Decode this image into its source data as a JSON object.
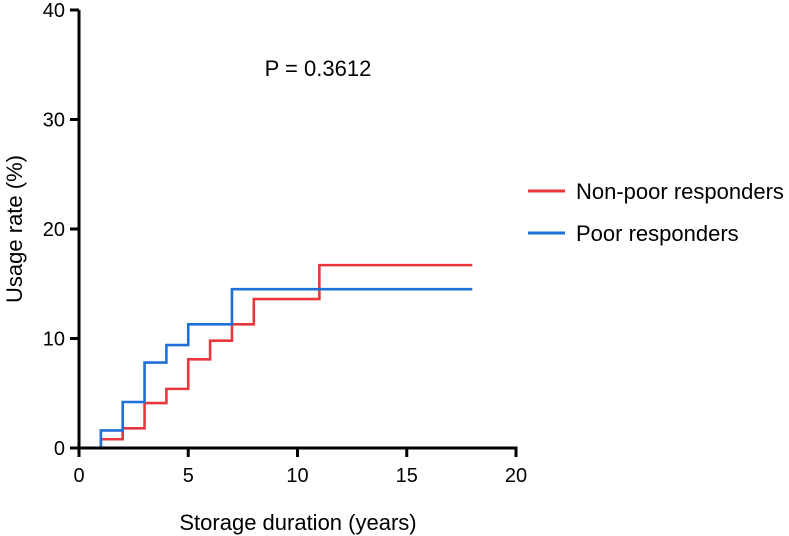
{
  "chart_data": {
    "type": "line",
    "step": true,
    "title": "",
    "xlabel": "Storage duration (years)",
    "ylabel": "Usage rate (%)",
    "xlim": [
      0,
      20
    ],
    "ylim": [
      0,
      40
    ],
    "x_ticks": [
      0,
      5,
      10,
      15,
      20
    ],
    "y_ticks": [
      0,
      10,
      20,
      30,
      40
    ],
    "grid": false,
    "legend_position": "right",
    "annotation": "P = 0.3612",
    "series": [
      {
        "name": "Non-poor responders",
        "color": "#e8383d",
        "x": [
          0,
          1,
          2,
          3,
          4,
          5,
          6,
          7,
          8,
          11,
          18
        ],
        "y": [
          0,
          0.8,
          1.8,
          4.1,
          5.4,
          8.1,
          9.8,
          11.3,
          13.6,
          16.7,
          16.7
        ]
      },
      {
        "name": "Poor responders",
        "color": "#1f6fd8",
        "x": [
          0,
          1,
          2,
          3,
          4,
          5,
          7,
          18
        ],
        "y": [
          0,
          1.6,
          4.2,
          7.8,
          9.4,
          11.3,
          14.5,
          14.5
        ]
      }
    ]
  }
}
